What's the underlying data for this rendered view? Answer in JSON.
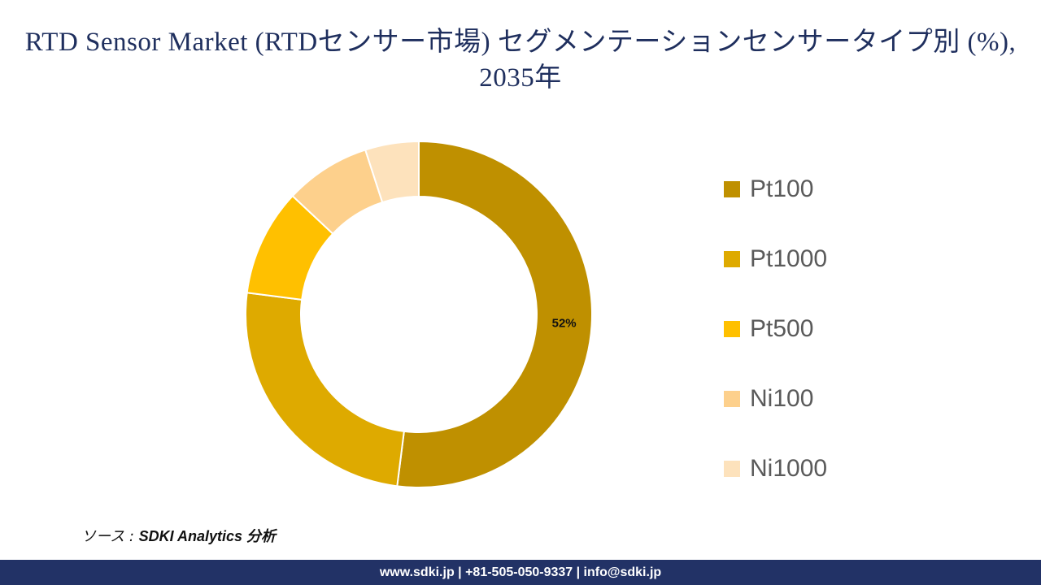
{
  "title": "RTD Sensor Market (RTDセンサー市場) セグメンテーションセンサータイプ別 (%), 2035年",
  "chart_data": {
    "type": "pie",
    "categories": [
      "Pt100",
      "Pt1000",
      "Pt500",
      "Ni100",
      "Ni1000"
    ],
    "values": [
      52,
      25,
      10,
      8,
      5
    ],
    "colors": [
      "#bf9000",
      "#deaa00",
      "#ffc000",
      "#fdd08c",
      "#fde2bc"
    ],
    "data_labels": [
      "52%",
      "",
      "",
      "",
      ""
    ],
    "legend_position": "right",
    "donut": true
  },
  "source": {
    "prefix": "ソース : ",
    "text": "SDKI Analytics 分析"
  },
  "footer": {
    "text": "www.sdki.jp | +81-505-050-9337 | info@sdki.jp"
  }
}
